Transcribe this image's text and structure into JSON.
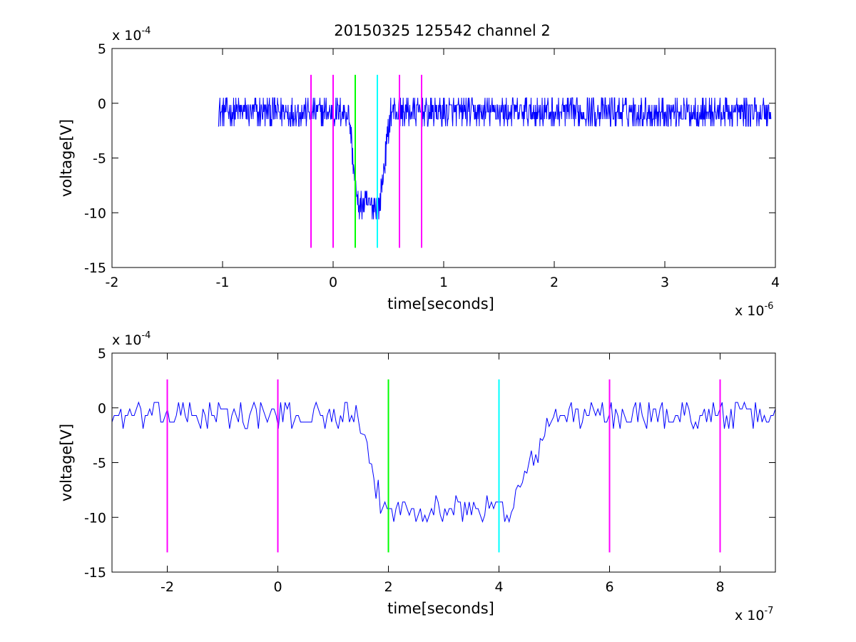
{
  "figure_title": "20150325 125542 channel 2",
  "chart_data": [
    {
      "type": "line",
      "title": "20150325 125542 channel 2",
      "xlabel": "time[seconds]",
      "ylabel": "voltage[V]",
      "x_exponent": {
        "base": "x 10",
        "power": "-6"
      },
      "y_exponent": {
        "base": "x 10",
        "power": "-4"
      },
      "xlim": [
        -2,
        4
      ],
      "ylim": [
        -15,
        5
      ],
      "xticks": [
        -2,
        -1,
        0,
        1,
        2,
        3,
        4
      ],
      "xtick_labels": [
        "-2",
        "-1",
        "0",
        "1",
        "2",
        "3",
        "4"
      ],
      "yticks": [
        -15,
        -10,
        -5,
        0,
        5
      ],
      "ytick_labels": [
        "-15",
        "-10",
        "-5",
        "0",
        "5"
      ],
      "grid": false,
      "signal": {
        "color": "#0000ff",
        "x_start": -1.04,
        "x_end": 3.96,
        "samples": 1250,
        "baseline": -0.8,
        "noise_amplitude": 1.3,
        "pulse": {
          "fall_start": 0.14,
          "fall_end": 0.22,
          "rise_start": 0.42,
          "rise_end": 0.52,
          "level": -9.3
        }
      },
      "markers": [
        {
          "x": -0.2,
          "color": "#ff00ff"
        },
        {
          "x": 0.0,
          "color": "#ff00ff"
        },
        {
          "x": 0.2,
          "color": "#00ff00"
        },
        {
          "x": 0.4,
          "color": "#00ffff"
        },
        {
          "x": 0.6,
          "color": "#ff00ff"
        },
        {
          "x": 0.8,
          "color": "#ff00ff"
        }
      ],
      "marker_range": [
        -13.2,
        2.6
      ]
    },
    {
      "type": "line",
      "title": "",
      "xlabel": "time[seconds]",
      "ylabel": "voltage[V]",
      "x_exponent": {
        "base": "x 10",
        "power": "-7"
      },
      "y_exponent": {
        "base": "x 10",
        "power": "-4"
      },
      "xlim": [
        -3,
        9
      ],
      "ylim": [
        -15,
        5
      ],
      "xticks": [
        -2,
        0,
        2,
        4,
        6,
        8
      ],
      "xtick_labels": [
        "-2",
        "0",
        "2",
        "4",
        "6",
        "8"
      ],
      "yticks": [
        -15,
        -10,
        -5,
        0,
        5
      ],
      "ytick_labels": [
        "-15",
        "-10",
        "-5",
        "0",
        "5"
      ],
      "grid": false,
      "signal": {
        "color": "#0000ff",
        "x_start": -3,
        "x_end": 9,
        "samples": 300,
        "baseline": -0.7,
        "noise_amplitude": 1.2,
        "pulse": {
          "fall_start": 1.4,
          "fall_end": 1.9,
          "rise_start": 4.2,
          "rise_end": 5.0,
          "level": -9.2
        }
      },
      "markers": [
        {
          "x": -2,
          "color": "#ff00ff"
        },
        {
          "x": 0,
          "color": "#ff00ff"
        },
        {
          "x": 2,
          "color": "#00ff00"
        },
        {
          "x": 4,
          "color": "#00ffff"
        },
        {
          "x": 6,
          "color": "#ff00ff"
        },
        {
          "x": 8,
          "color": "#ff00ff"
        }
      ],
      "marker_range": [
        -13.2,
        2.6
      ]
    }
  ]
}
